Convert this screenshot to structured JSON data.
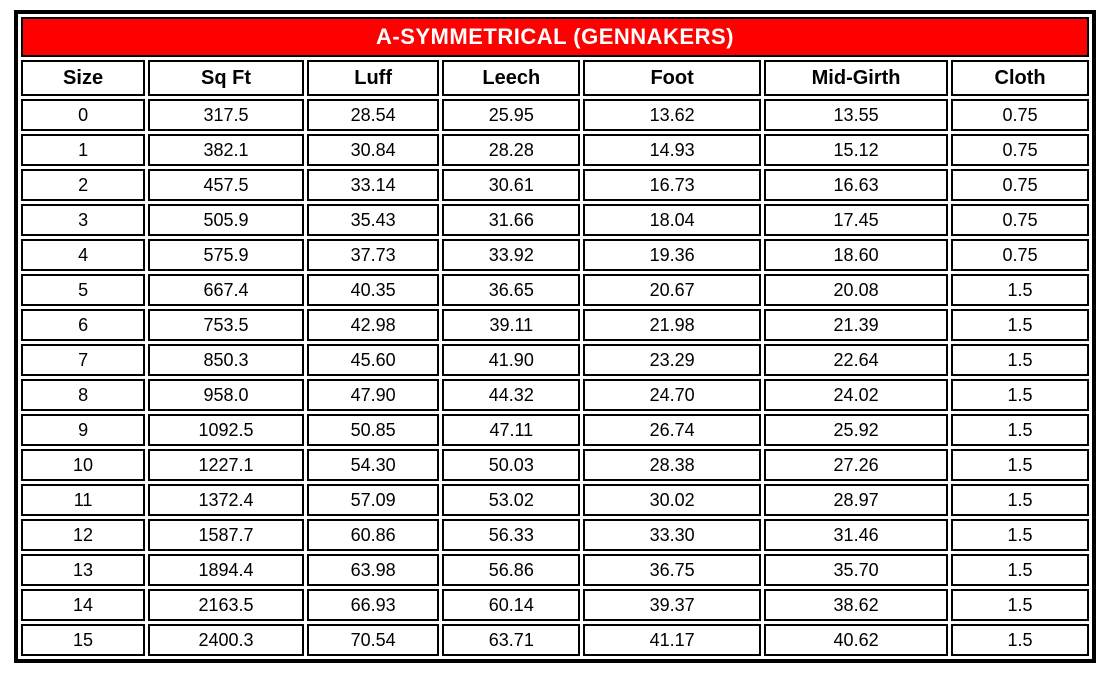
{
  "colors": {
    "title_bg": "#fe0000",
    "title_text": "#ffffff",
    "grid": "#000000",
    "cell_bg": "#ffffff"
  },
  "chart_data": {
    "type": "table",
    "title": "A-SYMMETRICAL (GENNAKERS)",
    "columns": [
      "Size",
      "Sq Ft",
      "Luff",
      "Leech",
      "Foot",
      "Mid-Girth",
      "Cloth"
    ],
    "rows": [
      [
        "0",
        "317.5",
        "28.54",
        "25.95",
        "13.62",
        "13.55",
        "0.75"
      ],
      [
        "1",
        "382.1",
        "30.84",
        "28.28",
        "14.93",
        "15.12",
        "0.75"
      ],
      [
        "2",
        "457.5",
        "33.14",
        "30.61",
        "16.73",
        "16.63",
        "0.75"
      ],
      [
        "3",
        "505.9",
        "35.43",
        "31.66",
        "18.04",
        "17.45",
        "0.75"
      ],
      [
        "4",
        "575.9",
        "37.73",
        "33.92",
        "19.36",
        "18.60",
        "0.75"
      ],
      [
        "5",
        "667.4",
        "40.35",
        "36.65",
        "20.67",
        "20.08",
        "1.5"
      ],
      [
        "6",
        "753.5",
        "42.98",
        "39.11",
        "21.98",
        "21.39",
        "1.5"
      ],
      [
        "7",
        "850.3",
        "45.60",
        "41.90",
        "23.29",
        "22.64",
        "1.5"
      ],
      [
        "8",
        "958.0",
        "47.90",
        "44.32",
        "24.70",
        "24.02",
        "1.5"
      ],
      [
        "9",
        "1092.5",
        "50.85",
        "47.11",
        "26.74",
        "25.92",
        "1.5"
      ],
      [
        "10",
        "1227.1",
        "54.30",
        "50.03",
        "28.38",
        "27.26",
        "1.5"
      ],
      [
        "11",
        "1372.4",
        "57.09",
        "53.02",
        "30.02",
        "28.97",
        "1.5"
      ],
      [
        "12",
        "1587.7",
        "60.86",
        "56.33",
        "33.30",
        "31.46",
        "1.5"
      ],
      [
        "13",
        "1894.4",
        "63.98",
        "56.86",
        "36.75",
        "35.70",
        "1.5"
      ],
      [
        "14",
        "2163.5",
        "66.93",
        "60.14",
        "39.37",
        "38.62",
        "1.5"
      ],
      [
        "15",
        "2400.3",
        "70.54",
        "63.71",
        "41.17",
        "40.62",
        "1.5"
      ]
    ],
    "layout": {
      "grid": "on",
      "column_width_pct": [
        11.8,
        14.8,
        12.6,
        13.1,
        16.9,
        17.5,
        13.1
      ]
    }
  }
}
